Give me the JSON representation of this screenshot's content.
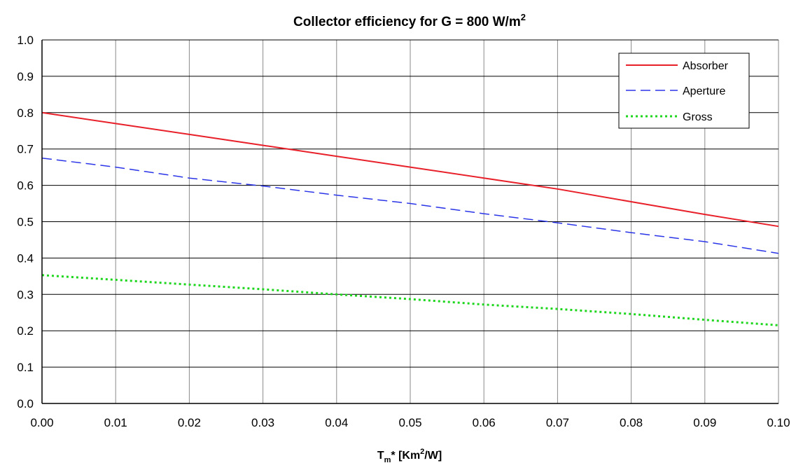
{
  "chart_data": {
    "type": "line",
    "title": {
      "main": "Collector efficiency for G = 800 W/m",
      "superscript": "2"
    },
    "xlabel": {
      "before_sub": "T",
      "sub": "m",
      "mid": "* [Km",
      "sup": "2",
      "after": "/W]"
    },
    "ylabel": "",
    "xlim": [
      0.0,
      0.1
    ],
    "ylim": [
      0.0,
      1.0
    ],
    "x_ticks": [
      "0.00",
      "0.01",
      "0.02",
      "0.03",
      "0.04",
      "0.05",
      "0.06",
      "0.07",
      "0.08",
      "0.09",
      "0.10"
    ],
    "y_ticks": [
      "0.0",
      "0.1",
      "0.2",
      "0.3",
      "0.4",
      "0.5",
      "0.6",
      "0.7",
      "0.8",
      "0.9",
      "1.0"
    ],
    "grid": {
      "vertical": true,
      "horizontal": true
    },
    "legend_position": "top-right",
    "x": [
      0.0,
      0.01,
      0.02,
      0.03,
      0.04,
      0.05,
      0.06,
      0.07,
      0.08,
      0.09,
      0.1
    ],
    "series": [
      {
        "name": "Absorber",
        "color": "#e8202a",
        "style": "solid",
        "values": [
          0.8,
          0.77,
          0.74,
          0.71,
          0.68,
          0.65,
          0.62,
          0.59,
          0.555,
          0.52,
          0.487
        ]
      },
      {
        "name": "Aperture",
        "color": "#2b35e8",
        "style": "dashed",
        "values": [
          0.675,
          0.65,
          0.62,
          0.598,
          0.573,
          0.55,
          0.522,
          0.497,
          0.47,
          0.445,
          0.413
        ]
      },
      {
        "name": "Gross",
        "color": "#1fd61f",
        "style": "dotted",
        "values": [
          0.353,
          0.34,
          0.327,
          0.314,
          0.3,
          0.287,
          0.272,
          0.26,
          0.246,
          0.23,
          0.215
        ]
      }
    ]
  }
}
